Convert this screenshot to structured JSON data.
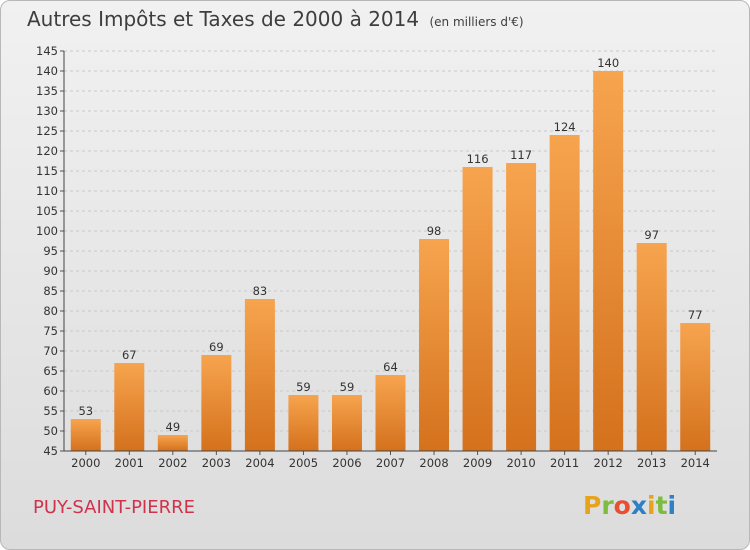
{
  "title": "Autres Impôts et Taxes de 2000 à 2014",
  "unit_label": "(en milliers d'€)",
  "commune": "PUY-SAINT-PIERRE",
  "logo": {
    "letters": [
      "P",
      "r",
      "o",
      "x",
      "i",
      "t",
      "i"
    ],
    "colors": [
      "#e8a31c",
      "#7bbd3c",
      "#e84e32",
      "#2d7fc6",
      "#e8a31c",
      "#7bbd3c",
      "#2d7fc6"
    ]
  },
  "colors": {
    "bar_light": "#f7a44e",
    "bar_dark": "#d4711d",
    "title": "#3e3e3e",
    "commune": "#d0324c"
  },
  "chart_data": {
    "type": "bar",
    "title": "Autres Impôts et Taxes de 2000 à 2014",
    "categories": [
      "2000",
      "2001",
      "2002",
      "2003",
      "2004",
      "2005",
      "2006",
      "2007",
      "2008",
      "2009",
      "2010",
      "2011",
      "2012",
      "2013",
      "2014"
    ],
    "values": [
      53,
      67,
      49,
      69,
      83,
      59,
      59,
      64,
      98,
      116,
      117,
      124,
      140,
      97,
      77
    ],
    "ylim": [
      45,
      145
    ],
    "ytick_step": 5,
    "grid": true,
    "data_labels": true
  }
}
